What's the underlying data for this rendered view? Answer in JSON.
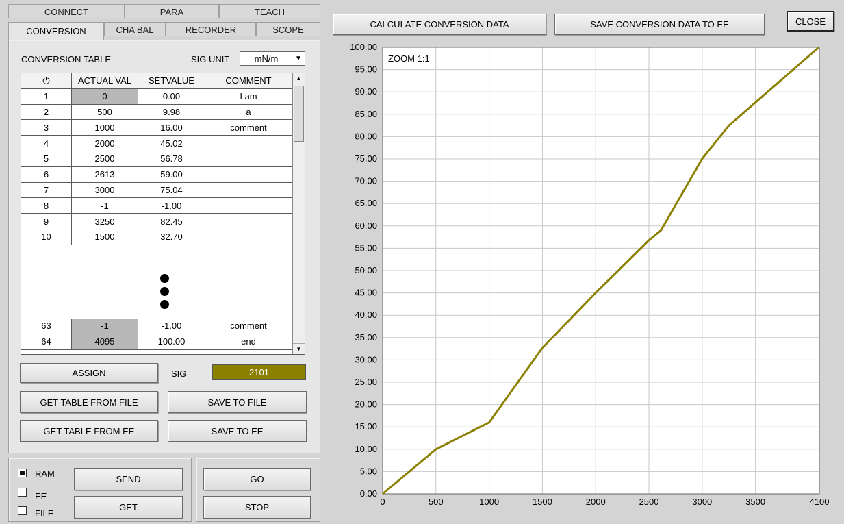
{
  "tabs": {
    "row1": [
      "CONNECT",
      "PARA",
      "TEACH"
    ],
    "row2": [
      "CONVERSION",
      "CHA BAL",
      "RECORDER",
      "SCOPE"
    ]
  },
  "table": {
    "title": "CONVERSION TABLE",
    "sig_unit_label": "SIG UNIT",
    "sig_unit_value": "mN/m",
    "headers": [
      "⏻",
      "ACTUAL VAL",
      "SETVALUE",
      "COMMENT"
    ],
    "rows_top": [
      [
        "1",
        "0",
        "0.00",
        "I am"
      ],
      [
        "2",
        "500",
        "9.98",
        "a"
      ],
      [
        "3",
        "1000",
        "16.00",
        "comment"
      ],
      [
        "4",
        "2000",
        "45.02",
        ""
      ],
      [
        "5",
        "2500",
        "56.78",
        ""
      ],
      [
        "6",
        "2613",
        "59.00",
        ""
      ],
      [
        "7",
        "3000",
        "75.04",
        ""
      ],
      [
        "8",
        "-1",
        "-1.00",
        ""
      ],
      [
        "9",
        "3250",
        "82.45",
        ""
      ],
      [
        "10",
        "1500",
        "32.70",
        ""
      ]
    ],
    "rows_bottom": [
      [
        "63",
        "-1",
        "-1.00",
        "comment"
      ],
      [
        "64",
        "4095",
        "100.00",
        "end"
      ]
    ]
  },
  "buttons": {
    "assign": "ASSIGN",
    "get_table_file": "GET TABLE FROM FILE",
    "save_file": "SAVE TO FILE",
    "get_table_ee": "GET TABLE FROM EE",
    "save_ee": "SAVE TO EE",
    "send": "SEND",
    "get": "GET",
    "go": "GO",
    "stop": "STOP",
    "calc": "CALCULATE CONVERSION DATA",
    "save_conv": "SAVE CONVERSION DATA TO EE",
    "close": "CLOSE"
  },
  "sig": {
    "label": "SIG",
    "value": "2101"
  },
  "memory": {
    "ram": "RAM",
    "ee": "EE",
    "file": "FILE",
    "selected": "RAM"
  },
  "colors": {
    "line": "#8b8000",
    "sig_bg": "#8b8000"
  },
  "chart_data": {
    "type": "line",
    "annotation": "ZOOM 1:1",
    "xlim": [
      0,
      4100
    ],
    "ylim": [
      0,
      100
    ],
    "xticks": [
      "0",
      "500",
      "1000",
      "1500",
      "2000",
      "2500",
      "3000",
      "3500",
      "4100"
    ],
    "yticks": [
      "0.00",
      "5.00",
      "10.00",
      "15.00",
      "20.00",
      "25.00",
      "30.00",
      "35.00",
      "40.00",
      "45.00",
      "50.00",
      "55.00",
      "60.00",
      "65.00",
      "70.00",
      "75.00",
      "80.00",
      "85.00",
      "90.00",
      "95.00",
      "100.00"
    ],
    "grid": true,
    "series": [
      {
        "x": [
          0,
          500,
          1000,
          1500,
          2000,
          2500,
          2613,
          3000,
          3250,
          4095
        ],
        "y": [
          0,
          9.98,
          16.0,
          32.7,
          45.02,
          56.78,
          59.0,
          75.04,
          82.45,
          100.0
        ]
      }
    ]
  }
}
